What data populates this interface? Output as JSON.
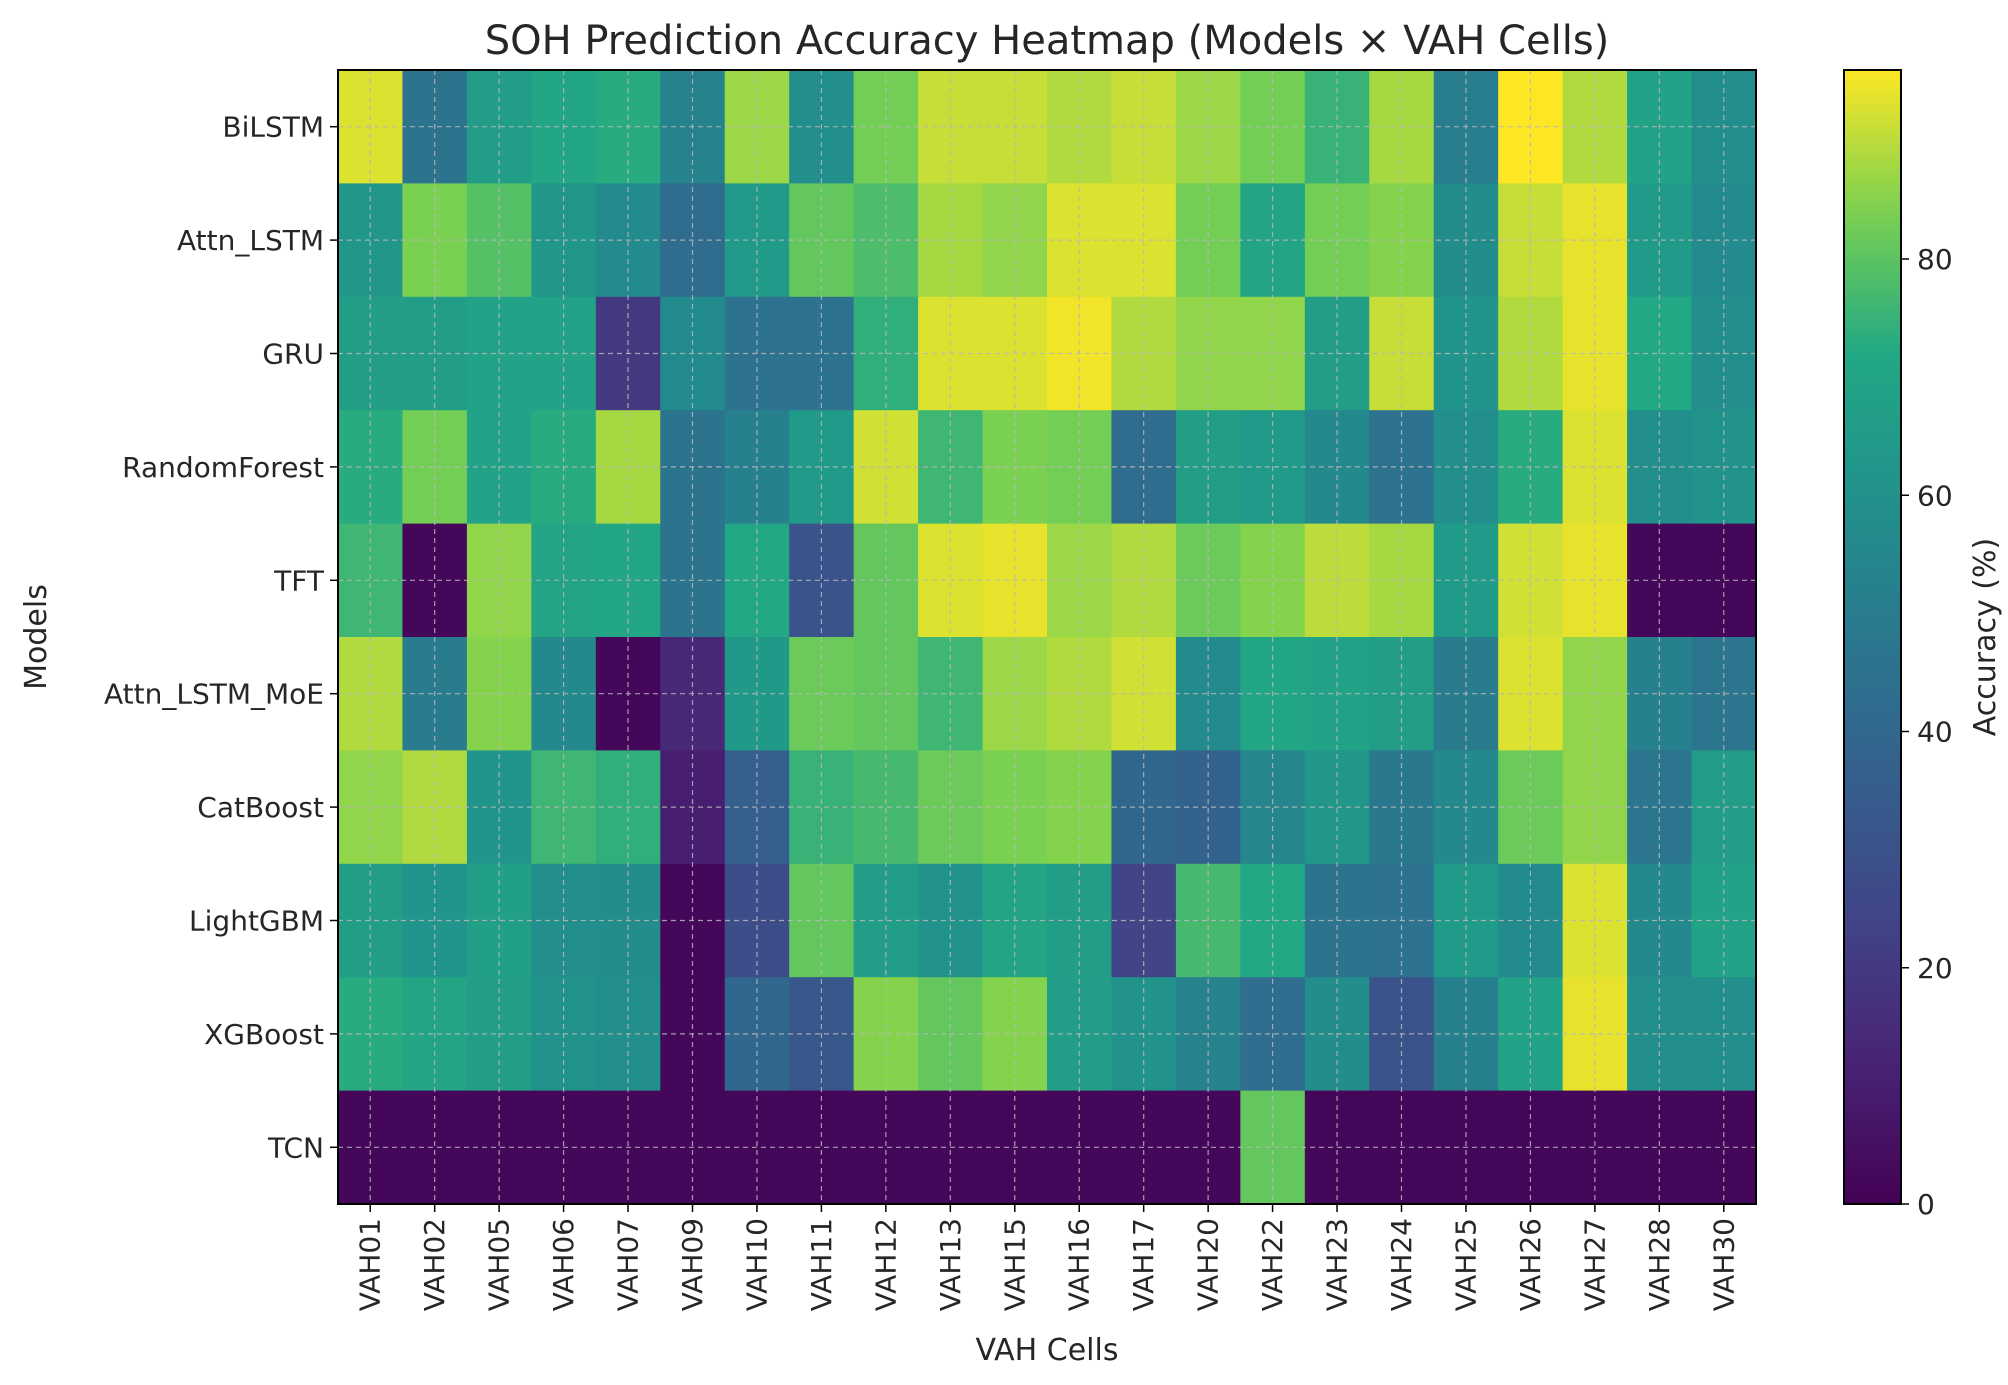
{
  "chart_data": {
    "type": "heatmap",
    "title": "SOH Prediction Accuracy Heatmap (Models × VAH Cells)",
    "xlabel": "VAH Cells",
    "ylabel": "Models",
    "colorbar_label": "Accuracy (%)",
    "colormap": "viridis",
    "value_range": [
      0,
      96
    ],
    "colorbar_ticks": [
      0,
      20,
      40,
      60,
      80
    ],
    "grid": true,
    "x_categories": [
      "VAH01",
      "VAH02",
      "VAH05",
      "VAH06",
      "VAH07",
      "VAH09",
      "VAH10",
      "VAH11",
      "VAH12",
      "VAH13",
      "VAH15",
      "VAH16",
      "VAH17",
      "VAH20",
      "VAH22",
      "VAH23",
      "VAH24",
      "VAH25",
      "VAH26",
      "VAH27",
      "VAH28",
      "VAH30"
    ],
    "y_categories": [
      "BiLSTM",
      "Attn_LSTM",
      "GRU",
      "RandomForest",
      "TFT",
      "Attn_LSTM_MoE",
      "CatBoost",
      "LightGBM",
      "XGBoost",
      "TCN"
    ],
    "values": [
      [
        93,
        46,
        66,
        71,
        73,
        53,
        87,
        59,
        83,
        91,
        91,
        89,
        91,
        87,
        83,
        75,
        88,
        51,
        96,
        89,
        69,
        59
      ],
      [
        63,
        84,
        79,
        63,
        57,
        42,
        65,
        81,
        78,
        88,
        86,
        93,
        93,
        83,
        70,
        83,
        85,
        58,
        91,
        94,
        65,
        57
      ],
      [
        67,
        67,
        69,
        69,
        20,
        57,
        45,
        45,
        74,
        93,
        93,
        95,
        89,
        86,
        86,
        67,
        91,
        62,
        89,
        94,
        72,
        59
      ],
      [
        73,
        83,
        69,
        73,
        88,
        46,
        52,
        65,
        92,
        76,
        84,
        83,
        42,
        67,
        65,
        56,
        45,
        59,
        73,
        93,
        59,
        61
      ],
      [
        76,
        2,
        86,
        70,
        71,
        46,
        72,
        31,
        81,
        93,
        94,
        87,
        89,
        82,
        85,
        90,
        88,
        65,
        92,
        94,
        2,
        2
      ],
      [
        89,
        50,
        85,
        56,
        2,
        14,
        64,
        82,
        81,
        76,
        87,
        89,
        92,
        57,
        71,
        69,
        67,
        50,
        93,
        86,
        52,
        47
      ],
      [
        86,
        89,
        62,
        76,
        74,
        10,
        36,
        75,
        77,
        82,
        84,
        85,
        40,
        38,
        55,
        63,
        48,
        56,
        82,
        86,
        47,
        66
      ],
      [
        67,
        62,
        68,
        59,
        58,
        2,
        28,
        81,
        66,
        61,
        70,
        67,
        24,
        77,
        72,
        46,
        45,
        65,
        57,
        93,
        56,
        69
      ],
      [
        73,
        70,
        67,
        61,
        59,
        2,
        40,
        33,
        85,
        81,
        85,
        66,
        61,
        53,
        43,
        58,
        31,
        52,
        69,
        94,
        59,
        59
      ],
      [
        2,
        2,
        2,
        2,
        2,
        2,
        2,
        2,
        2,
        2,
        2,
        2,
        2,
        2,
        81,
        2,
        2,
        2,
        2,
        2,
        2,
        2
      ]
    ]
  }
}
